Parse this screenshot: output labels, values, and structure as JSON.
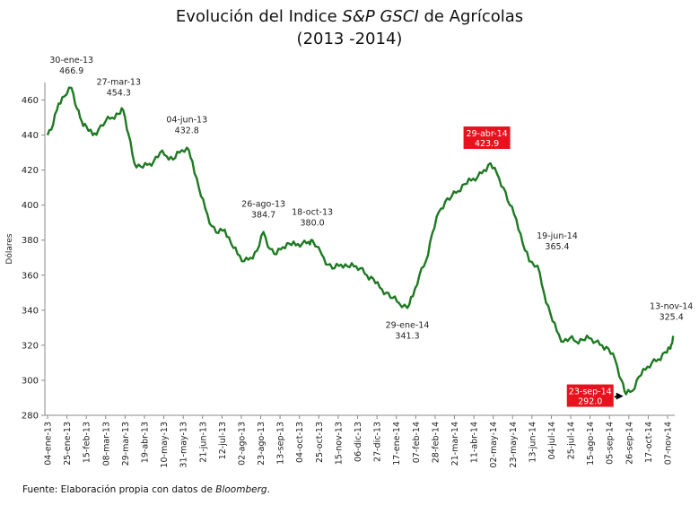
{
  "title": {
    "line1_prefix": "Evolución del Indice",
    "line1_italic": "S&P GSCI",
    "line1_suffix": "de Agrícolas",
    "line2": "(2013 -2014)"
  },
  "source": {
    "prefix": "Fuente: Elaboración propia con datos de",
    "italic": "Bloomberg",
    "suffix": "."
  },
  "chart_data": {
    "type": "line",
    "title": "Evolución del Indice S&P GSCI de Agrícolas (2013 -2014)",
    "xlabel": "",
    "ylabel": "Dólares",
    "ylim": [
      280,
      470
    ],
    "yticks": [
      280,
      300,
      320,
      340,
      360,
      380,
      400,
      420,
      440,
      460
    ],
    "grid": false,
    "line_color": "#1e7a22",
    "x_tick_labels": [
      "04-ene-13",
      "25-ene-13",
      "15-feb-13",
      "08-mar-13",
      "29-mar-13",
      "19-abr-13",
      "10-may-13",
      "31-may-13",
      "21-jun-13",
      "12-jul-13",
      "02-ago-13",
      "23-ago-13",
      "13-sep-13",
      "04-oct-13",
      "25-oct-13",
      "15-nov-13",
      "06-dic-13",
      "27-dic-13",
      "17-ene-14",
      "07-feb-14",
      "28-feb-14",
      "21-mar-14",
      "11-abr-14",
      "02-may-14",
      "23-may-14",
      "13-jun-14",
      "04-jul-14",
      "25-jul-14",
      "15-ago-14",
      "05-sep-14",
      "26-sep-14",
      "17-oct-14",
      "07-nov-14"
    ],
    "series": [
      {
        "x": [
          "2013-01-04",
          "2013-01-10",
          "2013-01-16",
          "2013-01-22",
          "2013-01-30",
          "2013-02-05",
          "2013-02-10",
          "2013-02-15",
          "2013-02-22",
          "2013-02-28",
          "2013-03-08",
          "2013-03-15",
          "2013-03-22",
          "2013-03-27",
          "2013-04-02",
          "2013-04-08",
          "2013-04-15",
          "2013-04-22",
          "2013-04-29",
          "2013-05-06",
          "2013-05-13",
          "2013-05-20",
          "2013-05-27",
          "2013-06-04",
          "2013-06-10",
          "2013-06-17",
          "2013-06-24",
          "2013-07-01",
          "2013-07-08",
          "2013-07-15",
          "2013-07-22",
          "2013-07-29",
          "2013-08-05",
          "2013-08-12",
          "2013-08-19",
          "2013-08-26",
          "2013-09-02",
          "2013-09-09",
          "2013-09-16",
          "2013-09-23",
          "2013-09-30",
          "2013-10-07",
          "2013-10-14",
          "2013-10-18",
          "2013-10-28",
          "2013-11-04",
          "2013-11-11",
          "2013-11-18",
          "2013-11-25",
          "2013-12-02",
          "2013-12-09",
          "2013-12-16",
          "2013-12-23",
          "2013-12-30",
          "2014-01-06",
          "2014-01-13",
          "2014-01-20",
          "2014-01-29",
          "2014-02-04",
          "2014-02-11",
          "2014-02-18",
          "2014-02-25",
          "2014-03-04",
          "2014-03-11",
          "2014-03-18",
          "2014-03-25",
          "2014-04-01",
          "2014-04-08",
          "2014-04-15",
          "2014-04-22",
          "2014-04-29",
          "2014-05-06",
          "2014-05-13",
          "2014-05-20",
          "2014-05-27",
          "2014-06-03",
          "2014-06-10",
          "2014-06-19",
          "2014-06-26",
          "2014-07-03",
          "2014-07-10",
          "2014-07-17",
          "2014-07-24",
          "2014-07-31",
          "2014-08-07",
          "2014-08-14",
          "2014-08-21",
          "2014-08-28",
          "2014-09-04",
          "2014-09-11",
          "2014-09-18",
          "2014-09-23",
          "2014-09-30",
          "2014-10-07",
          "2014-10-14",
          "2014-10-21",
          "2014-10-28",
          "2014-11-04",
          "2014-11-10",
          "2014-11-13"
        ],
        "values": [
          440,
          446,
          458,
          462,
          466.9,
          455,
          448,
          445,
          440,
          443,
          448,
          450,
          452,
          454.3,
          440,
          424,
          422,
          423,
          425,
          430,
          428,
          426,
          430,
          432.8,
          425,
          410,
          398,
          388,
          384,
          386,
          378,
          372,
          368,
          370,
          374,
          384.7,
          375,
          372,
          376,
          378,
          377,
          378,
          379,
          380.0,
          372,
          366,
          364,
          366,
          365,
          365,
          364,
          360,
          358,
          353,
          350,
          347,
          344,
          341.3,
          348,
          360,
          368,
          384,
          396,
          402,
          405,
          408,
          412,
          414,
          416,
          420,
          423.9,
          418,
          410,
          400,
          392,
          378,
          368,
          365.4,
          350,
          338,
          328,
          322,
          324,
          322,
          323,
          324,
          322,
          320,
          318,
          312,
          300,
          292.0,
          294,
          302,
          306,
          310,
          312,
          316,
          318,
          325.4
        ]
      }
    ],
    "annotations": [
      {
        "date": "30-ene-13",
        "value": "466.9",
        "highlight": false
      },
      {
        "date": "27-mar-13",
        "value": "454.3",
        "highlight": false
      },
      {
        "date": "04-jun-13",
        "value": "432.8",
        "highlight": false
      },
      {
        "date": "26-ago-13",
        "value": "384.7",
        "highlight": false
      },
      {
        "date": "18-oct-13",
        "value": "380.0",
        "highlight": false
      },
      {
        "date": "29-ene-14",
        "value": "341.3",
        "highlight": false
      },
      {
        "date": "29-abr-14",
        "value": "423.9",
        "highlight": true
      },
      {
        "date": "19-jun-14",
        "value": "365.4",
        "highlight": false
      },
      {
        "date": "23-sep-14",
        "value": "292.0",
        "highlight": true
      },
      {
        "date": "13-nov-14",
        "value": "325.4",
        "highlight": false
      }
    ]
  }
}
